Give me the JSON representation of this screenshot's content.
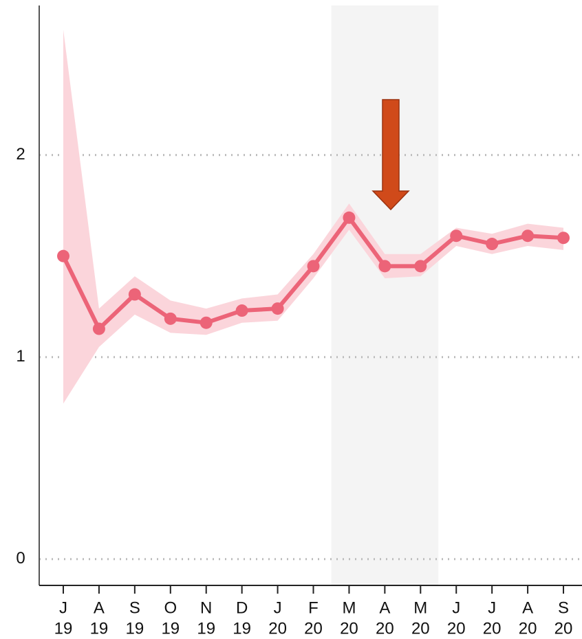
{
  "chart_data": {
    "type": "line",
    "categories": [
      [
        "J",
        "19"
      ],
      [
        "A",
        "19"
      ],
      [
        "S",
        "19"
      ],
      [
        "O",
        "19"
      ],
      [
        "N",
        "19"
      ],
      [
        "D",
        "19"
      ],
      [
        "J",
        "20"
      ],
      [
        "F",
        "20"
      ],
      [
        "M",
        "20"
      ],
      [
        "A",
        "20"
      ],
      [
        "M",
        "20"
      ],
      [
        "J",
        "20"
      ],
      [
        "J",
        "20"
      ],
      [
        "A",
        "20"
      ],
      [
        "S",
        "20"
      ]
    ],
    "series": [
      {
        "color": "#ec6478",
        "band_color": "#fbd5db",
        "values": [
          1.5,
          1.14,
          1.31,
          1.19,
          1.17,
          1.23,
          1.24,
          1.45,
          1.69,
          1.45,
          1.45,
          1.6,
          1.56,
          1.6,
          1.59
        ],
        "upper": [
          2.62,
          1.24,
          1.4,
          1.28,
          1.24,
          1.29,
          1.31,
          1.51,
          1.76,
          1.51,
          1.51,
          1.64,
          1.61,
          1.66,
          1.64
        ],
        "lower": [
          0.77,
          1.05,
          1.21,
          1.12,
          1.11,
          1.17,
          1.18,
          1.39,
          1.63,
          1.39,
          1.4,
          1.55,
          1.51,
          1.55,
          1.53
        ]
      }
    ],
    "shade": {
      "from": 8,
      "to": 10,
      "color": "#f4f4f4"
    },
    "ylim": [
      -0.13,
      2.74
    ],
    "yticks": [
      0,
      1,
      2
    ],
    "grid": true
  }
}
